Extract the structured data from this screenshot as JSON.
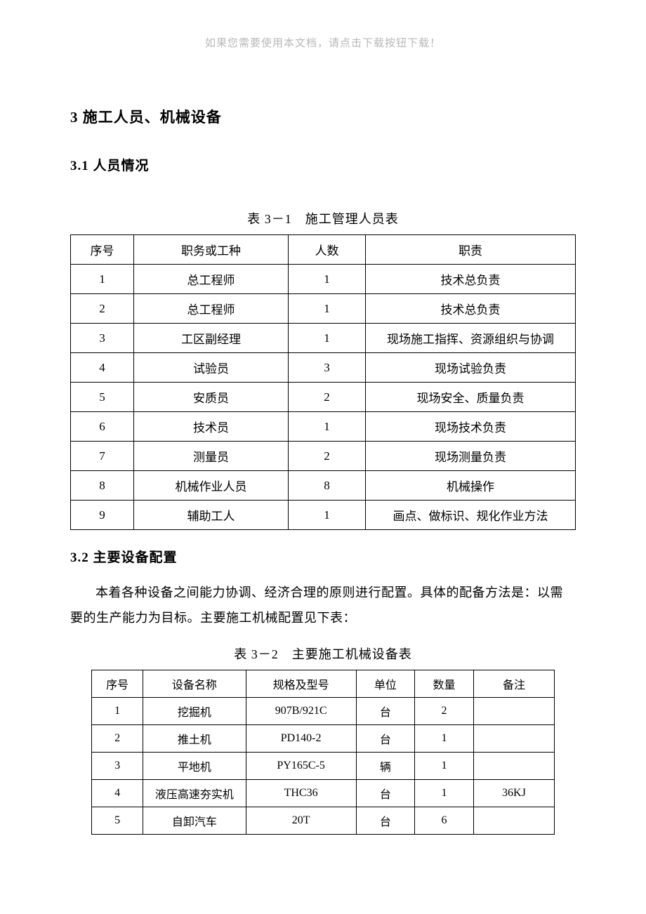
{
  "top_note": "如果您需要使用本文档，请点击下载按钮下载！",
  "heading_main": "3 施工人员、机械设备",
  "section1": {
    "heading": "3.1 人员情况",
    "caption": "表 3－1　施工管理人员表",
    "columns": [
      "序号",
      "职务或工种",
      "人数",
      "职责"
    ],
    "col_widths": [
      "90px",
      "220px",
      "110px",
      "auto"
    ],
    "rows": [
      [
        "1",
        "总工程师",
        "1",
        "技术总负责"
      ],
      [
        "2",
        "总工程师",
        "1",
        "技术总负责"
      ],
      [
        "3",
        "工区副经理",
        "1",
        "现场施工指挥、资源组织与协调"
      ],
      [
        "4",
        "试验员",
        "3",
        "现场试验负责"
      ],
      [
        "5",
        "安质员",
        "2",
        "现场安全、质量负责"
      ],
      [
        "6",
        "技术员",
        "1",
        "现场技术负责"
      ],
      [
        "7",
        "测量员",
        "2",
        "现场测量负责"
      ],
      [
        "8",
        "机械作业人员",
        "8",
        "机械操作"
      ],
      [
        "9",
        "辅助工人",
        "1",
        "画点、做标识、规化作业方法"
      ]
    ]
  },
  "section2": {
    "heading": "3.2 主要设备配置",
    "paragraph": "本着各种设备之间能力协调、经济合理的原则进行配置。具体的配备方法是：以需要的生产能力为目标。主要施工机械配置见下表：",
    "caption": "表 3－2　主要施工机械设备表",
    "columns": [
      "序号",
      "设备名称",
      "规格及型号",
      "单位",
      "数量",
      "备注"
    ],
    "col_widths": [
      "70px",
      "140px",
      "150px",
      "80px",
      "80px",
      "110px"
    ],
    "rows": [
      [
        "1",
        "挖掘机",
        "907B/921C",
        "台",
        "2",
        ""
      ],
      [
        "2",
        "推土机",
        "PD140-2",
        "台",
        "1",
        ""
      ],
      [
        "3",
        "平地机",
        "PY165C-5",
        "辆",
        "1",
        ""
      ],
      [
        "4",
        "液压高速夯实机",
        "THC36",
        "台",
        "1",
        "36KJ"
      ],
      [
        "5",
        "自卸汽车",
        "20T",
        "台",
        "6",
        ""
      ]
    ]
  }
}
